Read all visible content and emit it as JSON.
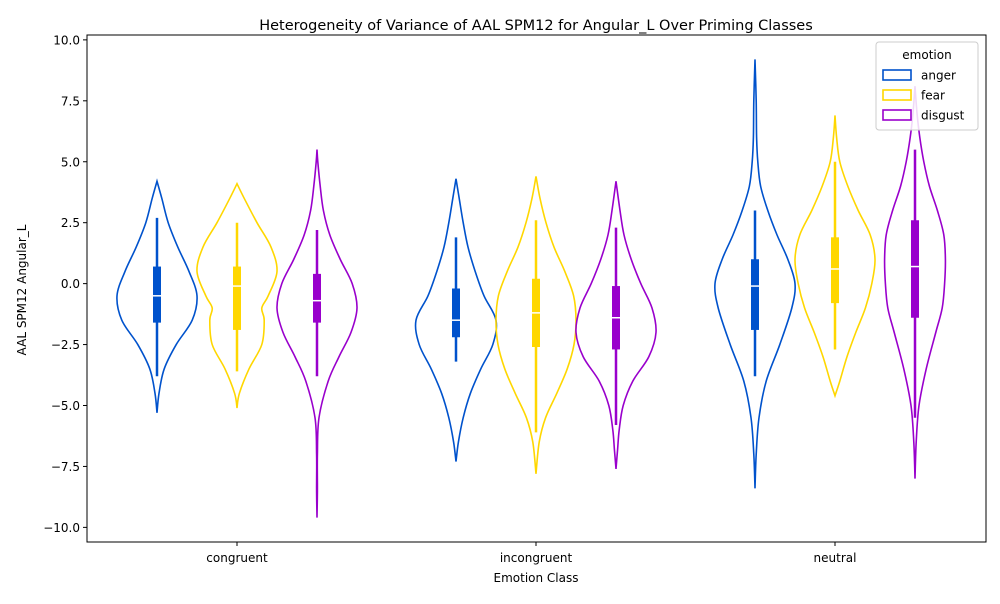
{
  "chart_data": {
    "type": "violin",
    "title": "Heterogeneity of Variance of AAL SPM12 for Angular_L Over Priming Classes",
    "xlabel": "Emotion Class",
    "ylabel": "AAL SPM12 Angular_L",
    "categories": [
      "congruent",
      "incongruent",
      "neutral"
    ],
    "ylim": [
      -10.6,
      10.2
    ],
    "yticks": [
      -10.0,
      -7.5,
      -5.0,
      -2.5,
      0.0,
      2.5,
      5.0,
      7.5,
      10.0
    ],
    "ytick_labels": [
      "−10.0",
      "−7.5",
      "−5.0",
      "−2.5",
      "0.0",
      "2.5",
      "5.0",
      "7.5",
      "10.0"
    ],
    "grid": false,
    "legend": {
      "title": "emotion",
      "placement": "top-right"
    },
    "series": [
      {
        "name": "anger",
        "color": "#0052CC",
        "stats": [
          {
            "category": "congruent",
            "min": -5.3,
            "max": 4.2,
            "whisker_low": -3.8,
            "whisker_high": 2.7,
            "q1": -1.6,
            "median": -0.5,
            "q3": 0.7,
            "density": [
              [
                -5.3,
                0.0
              ],
              [
                -4.5,
                0.05
              ],
              [
                -3.5,
                0.18
              ],
              [
                -2.5,
                0.48
              ],
              [
                -1.5,
                0.88
              ],
              [
                -0.5,
                1.0
              ],
              [
                0.5,
                0.8
              ],
              [
                1.5,
                0.52
              ],
              [
                2.5,
                0.28
              ],
              [
                3.5,
                0.12
              ],
              [
                4.2,
                0.0
              ]
            ]
          },
          {
            "category": "incongruent",
            "min": -7.3,
            "max": 4.3,
            "whisker_low": -3.2,
            "whisker_high": 1.9,
            "q1": -2.2,
            "median": -1.5,
            "q3": -0.2,
            "density": [
              [
                -7.3,
                0.0
              ],
              [
                -6.5,
                0.06
              ],
              [
                -5.5,
                0.18
              ],
              [
                -4.5,
                0.36
              ],
              [
                -3.5,
                0.62
              ],
              [
                -2.5,
                0.92
              ],
              [
                -1.5,
                1.0
              ],
              [
                -0.5,
                0.7
              ],
              [
                0.5,
                0.48
              ],
              [
                1.5,
                0.3
              ],
              [
                2.5,
                0.18
              ],
              [
                3.5,
                0.08
              ],
              [
                4.3,
                0.0
              ]
            ]
          },
          {
            "category": "neutral",
            "min": -8.4,
            "max": 9.2,
            "whisker_low": -3.8,
            "whisker_high": 3.0,
            "q1": -1.9,
            "median": -0.1,
            "q3": 1.0,
            "density": [
              [
                -8.4,
                0.0
              ],
              [
                -7.0,
                0.03
              ],
              [
                -5.5,
                0.1
              ],
              [
                -4.0,
                0.28
              ],
              [
                -2.5,
                0.62
              ],
              [
                -1.0,
                0.92
              ],
              [
                0.0,
                1.0
              ],
              [
                1.0,
                0.82
              ],
              [
                2.0,
                0.55
              ],
              [
                3.0,
                0.32
              ],
              [
                4.0,
                0.14
              ],
              [
                5.0,
                0.07
              ],
              [
                6.0,
                0.04
              ],
              [
                7.5,
                0.03
              ],
              [
                9.2,
                0.0
              ]
            ]
          }
        ]
      },
      {
        "name": "fear",
        "color": "#FFD700",
        "stats": [
          {
            "category": "congruent",
            "min": -5.1,
            "max": 4.1,
            "whisker_low": -3.6,
            "whisker_high": 2.5,
            "q1": -1.9,
            "median": -0.1,
            "q3": 0.7,
            "density": [
              [
                -5.1,
                0.0
              ],
              [
                -4.5,
                0.06
              ],
              [
                -3.5,
                0.3
              ],
              [
                -2.5,
                0.62
              ],
              [
                -1.5,
                0.68
              ],
              [
                -1.0,
                0.62
              ],
              [
                -0.5,
                0.78
              ],
              [
                0.5,
                1.0
              ],
              [
                1.5,
                0.85
              ],
              [
                2.5,
                0.5
              ],
              [
                3.5,
                0.18
              ],
              [
                4.1,
                0.0
              ]
            ]
          },
          {
            "category": "incongruent",
            "min": -7.8,
            "max": 4.4,
            "whisker_low": -6.1,
            "whisker_high": 2.6,
            "q1": -2.6,
            "median": -1.2,
            "q3": 0.2,
            "density": [
              [
                -7.8,
                0.0
              ],
              [
                -6.5,
                0.08
              ],
              [
                -5.5,
                0.24
              ],
              [
                -4.5,
                0.52
              ],
              [
                -3.5,
                0.78
              ],
              [
                -2.5,
                0.95
              ],
              [
                -1.5,
                1.0
              ],
              [
                -0.5,
                0.94
              ],
              [
                0.5,
                0.72
              ],
              [
                1.5,
                0.45
              ],
              [
                2.5,
                0.25
              ],
              [
                3.5,
                0.1
              ],
              [
                4.4,
                0.0
              ]
            ]
          },
          {
            "category": "neutral",
            "min": -4.6,
            "max": 6.9,
            "whisker_low": -2.7,
            "whisker_high": 5.0,
            "q1": -0.8,
            "median": 0.6,
            "q3": 1.9,
            "density": [
              [
                -4.6,
                0.0
              ],
              [
                -4.0,
                0.12
              ],
              [
                -3.0,
                0.3
              ],
              [
                -2.0,
                0.52
              ],
              [
                -1.0,
                0.76
              ],
              [
                0.0,
                0.92
              ],
              [
                1.0,
                1.0
              ],
              [
                2.0,
                0.88
              ],
              [
                3.0,
                0.58
              ],
              [
                4.0,
                0.32
              ],
              [
                5.0,
                0.12
              ],
              [
                6.0,
                0.04
              ],
              [
                6.9,
                0.0
              ]
            ]
          }
        ]
      },
      {
        "name": "disgust",
        "color": "#9900CC",
        "stats": [
          {
            "category": "congruent",
            "min": -9.6,
            "max": 5.5,
            "whisker_low": -3.8,
            "whisker_high": 2.2,
            "q1": -1.6,
            "median": -0.7,
            "q3": 0.4,
            "density": [
              [
                -9.6,
                0.0
              ],
              [
                -8.5,
                0.01
              ],
              [
                -7.0,
                0.01
              ],
              [
                -5.5,
                0.05
              ],
              [
                -4.0,
                0.28
              ],
              [
                -3.0,
                0.55
              ],
              [
                -2.0,
                0.85
              ],
              [
                -1.0,
                1.0
              ],
              [
                0.0,
                0.88
              ],
              [
                1.0,
                0.58
              ],
              [
                2.0,
                0.32
              ],
              [
                3.0,
                0.16
              ],
              [
                4.0,
                0.08
              ],
              [
                5.0,
                0.02
              ],
              [
                5.5,
                0.0
              ]
            ]
          },
          {
            "category": "incongruent",
            "min": -7.6,
            "max": 4.2,
            "whisker_low": -5.8,
            "whisker_high": 2.3,
            "q1": -2.7,
            "median": -1.4,
            "q3": -0.1,
            "density": [
              [
                -7.6,
                0.0
              ],
              [
                -6.8,
                0.04
              ],
              [
                -6.0,
                0.08
              ],
              [
                -5.0,
                0.18
              ],
              [
                -4.0,
                0.42
              ],
              [
                -3.0,
                0.82
              ],
              [
                -2.0,
                1.0
              ],
              [
                -1.0,
                0.9
              ],
              [
                0.0,
                0.62
              ],
              [
                1.0,
                0.38
              ],
              [
                2.0,
                0.2
              ],
              [
                3.0,
                0.1
              ],
              [
                4.2,
                0.0
              ]
            ]
          },
          {
            "category": "neutral",
            "min": -8.0,
            "max": 8.1,
            "whisker_low": -5.5,
            "whisker_high": 5.5,
            "q1": -1.4,
            "median": 0.7,
            "q3": 2.6,
            "density": [
              [
                -8.0,
                0.0
              ],
              [
                -6.5,
                0.03
              ],
              [
                -5.0,
                0.1
              ],
              [
                -3.5,
                0.28
              ],
              [
                -2.0,
                0.52
              ],
              [
                -1.0,
                0.68
              ],
              [
                0.0,
                0.74
              ],
              [
                1.0,
                0.76
              ],
              [
                2.0,
                0.72
              ],
              [
                3.0,
                0.56
              ],
              [
                4.0,
                0.36
              ],
              [
                5.0,
                0.22
              ],
              [
                6.0,
                0.12
              ],
              [
                7.0,
                0.05
              ],
              [
                8.1,
                0.0
              ]
            ]
          }
        ]
      }
    ]
  }
}
